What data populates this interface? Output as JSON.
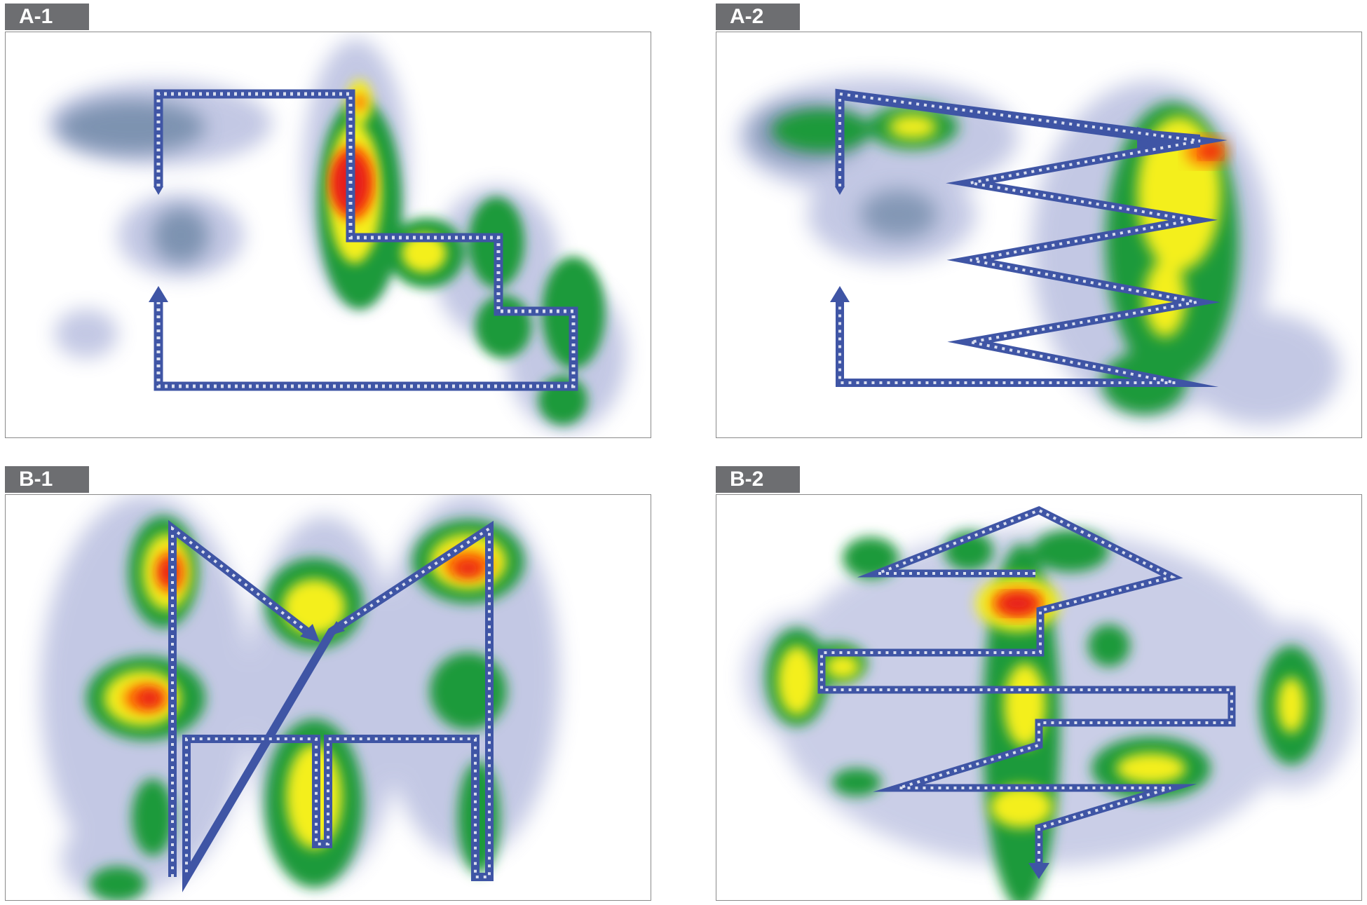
{
  "panels": [
    {
      "id": "a1",
      "label": "A-1"
    },
    {
      "id": "a2",
      "label": "A-2"
    },
    {
      "id": "b1",
      "label": "B-1"
    },
    {
      "id": "b2",
      "label": "B-2"
    }
  ],
  "colors": {
    "tag_background": "#6d6e71",
    "tag_text": "#ffffff",
    "frame_border": "#8a8a8a",
    "scanpath": "#3f55a5",
    "scanpath_chevrons": "#d9deee",
    "heat_scale": [
      "#7c86c4",
      "#1f9a3a",
      "#f4ef1e",
      "#ff6a00",
      "#e61a1a"
    ]
  },
  "icons": {
    "scanpath_arrow": "arrowhead-icon",
    "scanpath_chevron": "chevron-marker-icon"
  }
}
